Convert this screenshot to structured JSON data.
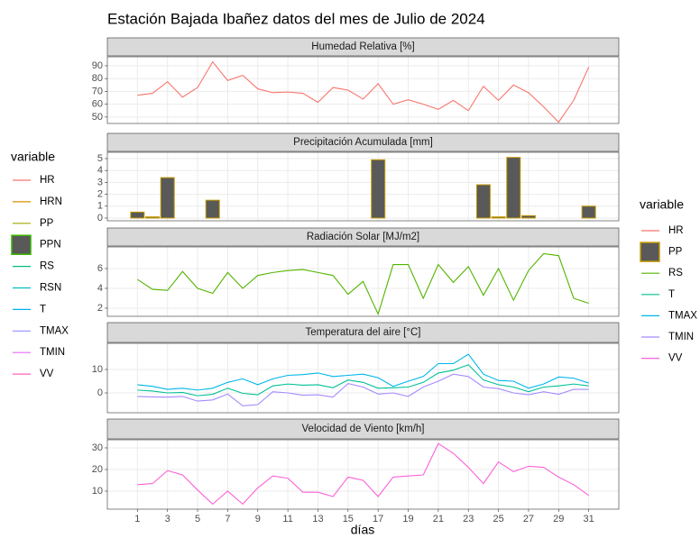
{
  "chart_data": {
    "type": "facet",
    "title": "Estación Bajada Ibañez datos del mes de Julio de 2024",
    "x_label": "días",
    "x": [
      1,
      2,
      3,
      4,
      5,
      6,
      7,
      8,
      9,
      10,
      11,
      12,
      13,
      14,
      15,
      16,
      17,
      18,
      19,
      20,
      21,
      22,
      23,
      24,
      25,
      26,
      27,
      28,
      29,
      30,
      31
    ],
    "xlim": [
      -1,
      33
    ],
    "xticks": [
      1,
      3,
      5,
      7,
      9,
      11,
      13,
      15,
      17,
      19,
      21,
      23,
      25,
      27,
      29,
      31
    ],
    "grid": true,
    "legends": [
      {
        "title": "variable",
        "position": "left",
        "entries": [
          {
            "name": "HR",
            "color": "#F8766D",
            "key": "line"
          },
          {
            "name": "HRN",
            "color": "#D89000",
            "key": "line"
          },
          {
            "name": "PP",
            "color": "#A3A500",
            "key": "line"
          },
          {
            "name": "PPN",
            "color": "#39B600",
            "key": "box"
          },
          {
            "name": "RS",
            "color": "#00BF7D",
            "key": "line"
          },
          {
            "name": "RSN",
            "color": "#00BFC4",
            "key": "line"
          },
          {
            "name": "T",
            "color": "#00B0F6",
            "key": "line"
          },
          {
            "name": "TMAX",
            "color": "#9590FF",
            "key": "line"
          },
          {
            "name": "TMIN",
            "color": "#E76BF3",
            "key": "line"
          },
          {
            "name": "VV",
            "color": "#FF62BC",
            "key": "line"
          }
        ]
      },
      {
        "title": "variable",
        "position": "right",
        "entries": [
          {
            "name": "HR",
            "color": "#F8766D",
            "key": "line"
          },
          {
            "name": "PP",
            "color": "#C49A00",
            "key": "box"
          },
          {
            "name": "RS",
            "color": "#53B400",
            "key": "line"
          },
          {
            "name": "T",
            "color": "#00C094",
            "key": "line"
          },
          {
            "name": "TMAX",
            "color": "#00B6EB",
            "key": "line"
          },
          {
            "name": "TMIN",
            "color": "#A58AFF",
            "key": "line"
          },
          {
            "name": "VV",
            "color": "#FB61D7",
            "key": "line"
          }
        ]
      }
    ],
    "panels": [
      {
        "type": "line",
        "title": "Humedad Relativa [%]",
        "ylim": [
          45,
          97
        ],
        "yticks": [
          50,
          60,
          70,
          80,
          90
        ],
        "series": [
          {
            "name": "HR",
            "color": "#F8766D",
            "values": [
              67,
              68.5,
              77.5,
              65.5,
              73,
              93,
              78.5,
              82.5,
              72,
              69,
              69.5,
              68.5,
              61.5,
              73,
              71,
              64,
              76,
              60,
              63.5,
              60,
              56,
              63,
              55,
              74,
              63,
              75,
              69,
              58,
              46,
              63,
              89
            ]
          }
        ]
      },
      {
        "type": "bar",
        "title": "Precipitación Acumulada [mm]",
        "ylim": [
          -0.23,
          5.53
        ],
        "yticks": [
          0,
          1,
          2,
          3,
          4,
          5
        ],
        "bar_fill": "#595959",
        "series": [
          {
            "name": "PP",
            "color": "#C49A00",
            "values": [
              0.5,
              0.1,
              3.4,
              0,
              0,
              1.5,
              0,
              0,
              0,
              0,
              0,
              0,
              0,
              0,
              0,
              0,
              4.9,
              0,
              0,
              0,
              0,
              0,
              0,
              2.8,
              0.1,
              5.1,
              0.2,
              0,
              0,
              0,
              1.0
            ]
          }
        ]
      },
      {
        "type": "line",
        "title": "Radiación Solar [MJ/m2]",
        "ylim": [
          1.18,
          8.18
        ],
        "yticks": [
          2,
          4,
          6
        ],
        "series": [
          {
            "name": "RS",
            "color": "#53B400",
            "values": [
              4.9,
              3.9,
              3.8,
              5.7,
              4.0,
              3.5,
              5.6,
              4.0,
              5.3,
              5.6,
              5.8,
              5.9,
              5.6,
              5.3,
              3.4,
              4.7,
              1.4,
              6.4,
              6.4,
              3.0,
              6.4,
              4.6,
              6.2,
              3.3,
              6.0,
              2.8,
              5.8,
              7.5,
              7.3,
              3.0,
              2.5
            ]
          }
        ]
      },
      {
        "type": "line",
        "title": "Temperatura del aire [°C]",
        "ylim": [
          -8.46,
          21.15
        ],
        "yticks": [
          0,
          10
        ],
        "series": [
          {
            "name": "T",
            "color": "#00C094",
            "values": [
              1.2,
              0.8,
              0,
              0.2,
              -1.2,
              -0.6,
              2,
              -0.2,
              -0.8,
              3,
              3.8,
              3.3,
              3.5,
              2.2,
              5.5,
              4.5,
              2,
              2.2,
              2.5,
              4.5,
              8.5,
              9.7,
              12,
              5.5,
              3.5,
              2.5,
              0.5,
              2.5,
              3,
              3.8,
              3
            ]
          },
          {
            "name": "TMAX",
            "color": "#00B6EB",
            "values": [
              3.5,
              2.8,
              1.5,
              2,
              1.2,
              2,
              4.5,
              6,
              3.5,
              6,
              7.5,
              7.8,
              8.5,
              7,
              7.5,
              8,
              6.5,
              2.8,
              5,
              7,
              12.5,
              12.5,
              16.5,
              8,
              5.3,
              5,
              2,
              3.8,
              6.8,
              6.3,
              4.2
            ]
          },
          {
            "name": "TMIN",
            "color": "#A58AFF",
            "values": [
              -1.5,
              -1.7,
              -1.8,
              -1.5,
              -3.5,
              -3,
              -0.5,
              -5.5,
              -5,
              0.5,
              0,
              -1,
              -0.8,
              -1.8,
              4,
              2.5,
              -0.5,
              0,
              -1.5,
              2.5,
              5,
              8,
              7,
              2.5,
              1.8,
              0,
              -0.8,
              0.5,
              -0.6,
              1.5,
              1.5
            ]
          }
        ]
      },
      {
        "type": "line",
        "title": "Velocidad de Viento [km/h]",
        "ylim": [
          1.67,
          33.75
        ],
        "yticks": [
          10,
          20,
          30
        ],
        "series": [
          {
            "name": "VV",
            "color": "#FB61D7",
            "values": [
              13,
              13.5,
              19.5,
              17.5,
              10.5,
              4,
              10,
              4,
              11.5,
              17,
              16,
              9.5,
              9.5,
              7.5,
              16.5,
              15,
              7.5,
              16.5,
              17,
              17.5,
              32,
              27.5,
              21,
              13.5,
              23.5,
              19,
              21.5,
              21,
              16.5,
              13,
              8
            ]
          }
        ]
      }
    ]
  }
}
